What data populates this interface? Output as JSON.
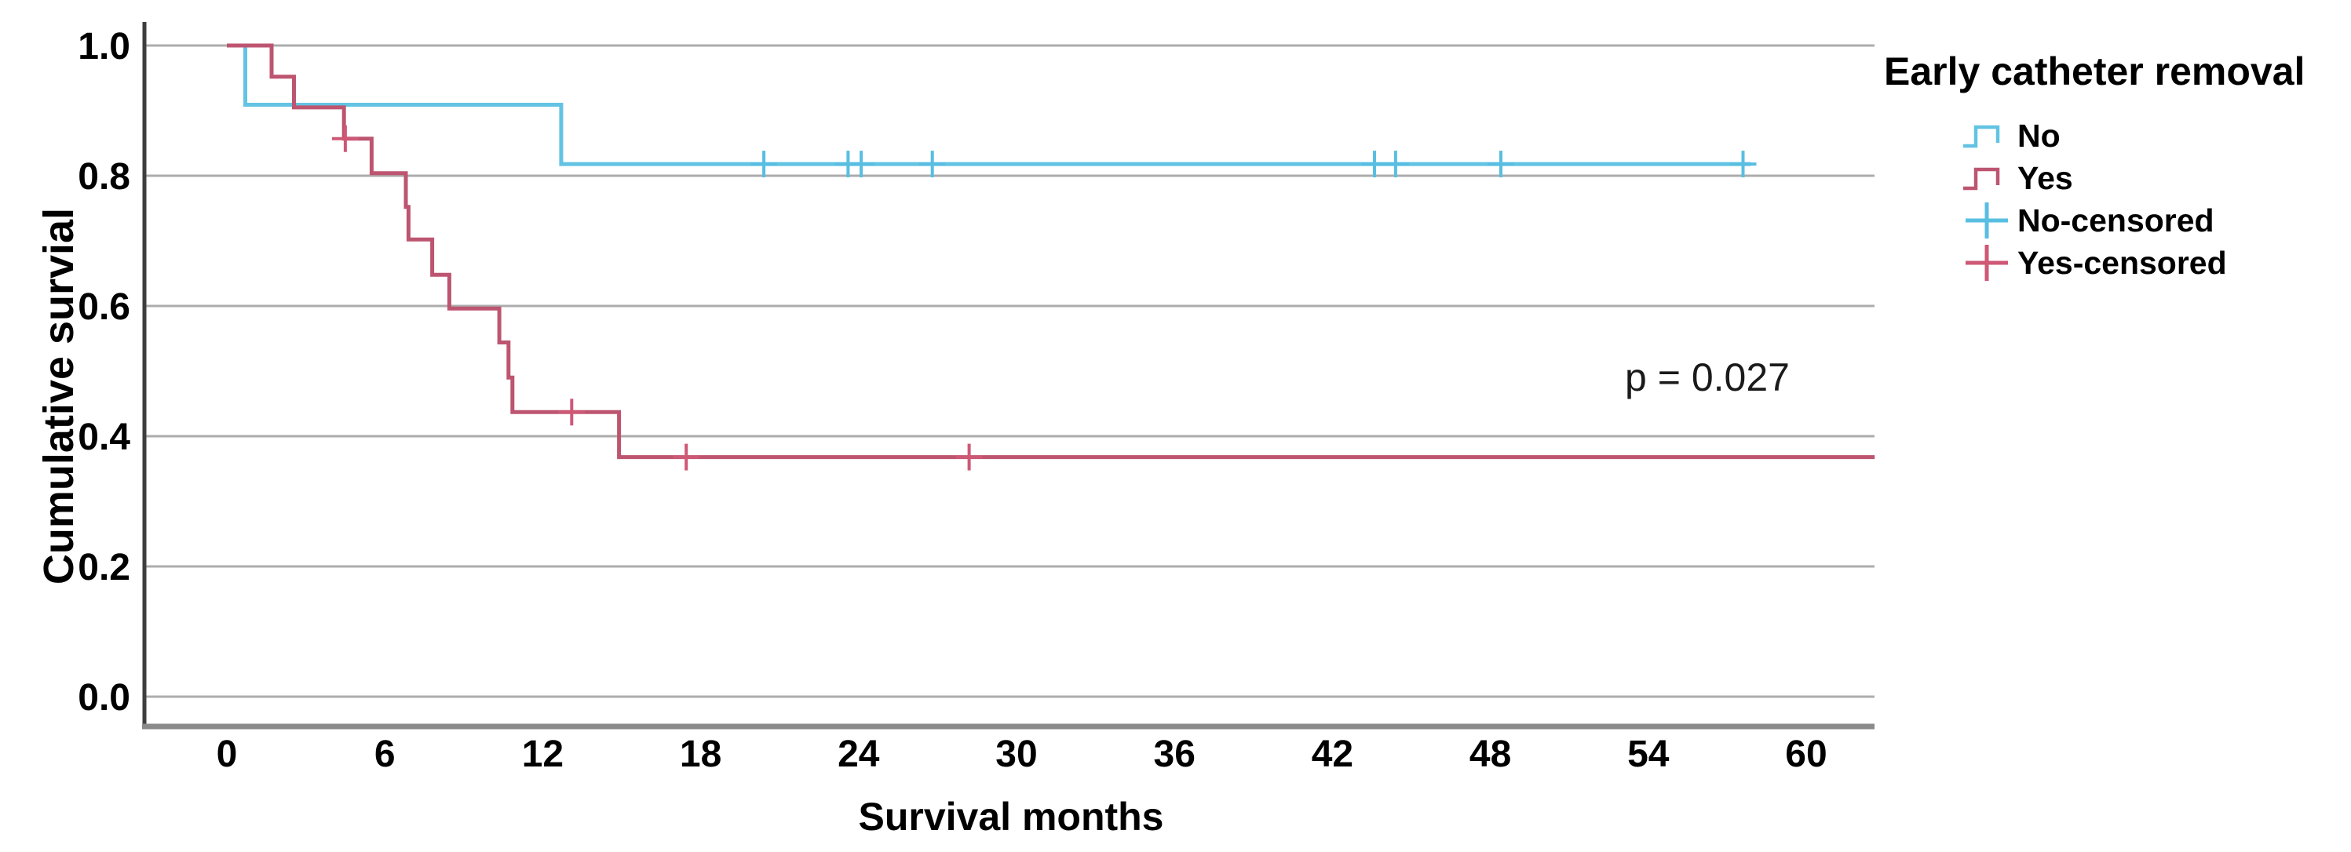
{
  "figure": {
    "p_value_label": "p = 0.027",
    "legend": {
      "title": "Early catheter removal",
      "items": [
        {
          "id": "no",
          "label": "No",
          "marker": "step-line",
          "color": "#63C3E3"
        },
        {
          "id": "yes",
          "label": "Yes",
          "marker": "step-line",
          "color": "#BD5570"
        },
        {
          "id": "no-censored",
          "label": "No-censored",
          "marker": "plus",
          "color": "#58BEE2"
        },
        {
          "id": "yes-censored",
          "label": "Yes-censored",
          "marker": "plus",
          "color": "#CE5876"
        }
      ]
    }
  },
  "chart_data": {
    "type": "line",
    "subtype": "kaplan-meier-step-function",
    "title": "",
    "xlabel": "Survival months",
    "ylabel": "Cumulative survial",
    "xlim": [
      -3.2,
      62.6
    ],
    "ylim": [
      -0.05,
      1.04
    ],
    "grid": "horizontal-only",
    "grid_color": "#ACACAC",
    "axis_color": "#3E3E3E",
    "baseline_color": "#8A8A8A",
    "legend_position": "right",
    "x_ticks": [
      {
        "v": 0,
        "label": "0"
      },
      {
        "v": 6,
        "label": "6"
      },
      {
        "v": 12,
        "label": "12"
      },
      {
        "v": 18,
        "label": "18"
      },
      {
        "v": 24,
        "label": "24"
      },
      {
        "v": 30,
        "label": "30"
      },
      {
        "v": 36,
        "label": "36"
      },
      {
        "v": 42,
        "label": "42"
      },
      {
        "v": 48,
        "label": "48"
      },
      {
        "v": 54,
        "label": "54"
      },
      {
        "v": 60,
        "label": "60"
      }
    ],
    "y_ticks": [
      {
        "v": 1.0,
        "label": "1.0"
      },
      {
        "v": 0.8,
        "label": "0.8"
      },
      {
        "v": 0.6,
        "label": "0.6"
      },
      {
        "v": 0.4,
        "label": "0.4"
      },
      {
        "v": 0.2,
        "label": "0.2"
      },
      {
        "v": 0.0,
        "label": "0.0"
      }
    ],
    "series": [
      {
        "name": "No",
        "color": "#63C3E3",
        "censor_color": "#58BEE2",
        "end": 57.9,
        "steps": [
          [
            0,
            1.0
          ],
          [
            0.7,
            0.909
          ],
          [
            12.7,
            0.818
          ]
        ],
        "censored": [
          [
            20.4,
            0.818
          ],
          [
            23.6,
            0.818
          ],
          [
            24.1,
            0.818
          ],
          [
            26.8,
            0.818
          ],
          [
            43.6,
            0.818
          ],
          [
            44.4,
            0.818
          ],
          [
            48.4,
            0.818
          ],
          [
            57.6,
            0.818
          ]
        ]
      },
      {
        "name": "Yes",
        "color": "#BD5570",
        "censor_color": "#CE5876",
        "end": 62.6,
        "steps": [
          [
            0,
            1.0
          ],
          [
            1.7,
            0.952
          ],
          [
            2.55,
            0.905
          ],
          [
            4.45,
            0.857
          ],
          [
            5.5,
            0.804
          ],
          [
            6.8,
            0.752
          ],
          [
            6.9,
            0.702
          ],
          [
            7.8,
            0.648
          ],
          [
            8.45,
            0.596
          ],
          [
            10.35,
            0.544
          ],
          [
            10.7,
            0.49
          ],
          [
            10.85,
            0.437
          ],
          [
            14.9,
            0.368
          ]
        ],
        "censored": [
          [
            4.5,
            0.857
          ],
          [
            13.1,
            0.437
          ],
          [
            17.45,
            0.368
          ],
          [
            28.2,
            0.368
          ]
        ]
      }
    ],
    "annotations": [
      {
        "text": "p = 0.027",
        "x": 56.1,
        "y": 0.48
      }
    ]
  }
}
